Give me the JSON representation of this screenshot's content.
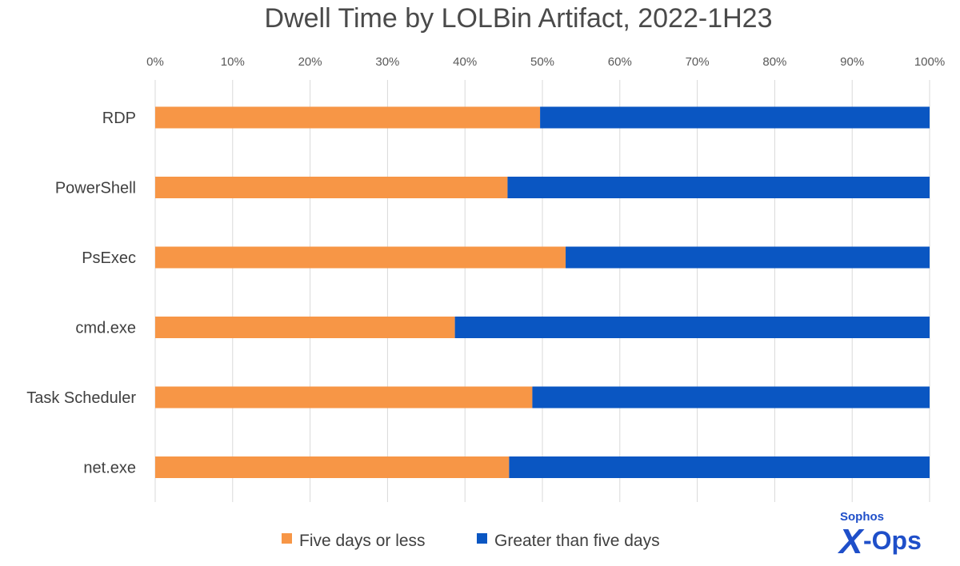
{
  "chart_data": {
    "type": "bar",
    "orientation": "horizontal",
    "stacked": true,
    "title": "Dwell Time by LOLBin Artifact, 2022-1H23",
    "xlabel": "",
    "ylabel": "",
    "xlim": [
      0,
      100
    ],
    "x_ticks": [
      "0%",
      "10%",
      "20%",
      "30%",
      "40%",
      "50%",
      "60%",
      "70%",
      "80%",
      "90%",
      "100%"
    ],
    "x_tick_values": [
      0,
      10,
      20,
      30,
      40,
      50,
      60,
      70,
      80,
      90,
      100
    ],
    "axis_position": "top",
    "grid": true,
    "categories": [
      "RDP",
      "PowerShell",
      "PsExec",
      "cmd.exe",
      "Task Scheduler",
      "net.exe"
    ],
    "series": [
      {
        "name": "Five days or less",
        "color": "#f79646",
        "values": [
          49.7,
          45.5,
          53.0,
          38.7,
          48.7,
          45.7
        ]
      },
      {
        "name": "Greater than five days",
        "color": "#0a56c2",
        "values": [
          50.3,
          54.5,
          47.0,
          61.3,
          51.3,
          54.3
        ]
      }
    ],
    "legend_position": "bottom-center"
  },
  "logo": {
    "top_text": "Sophos",
    "mark_text": "X",
    "mark_suffix": "-Ops"
  },
  "colors": {
    "grid": "#d9d9d9",
    "brand": "#1f4fc9"
  }
}
